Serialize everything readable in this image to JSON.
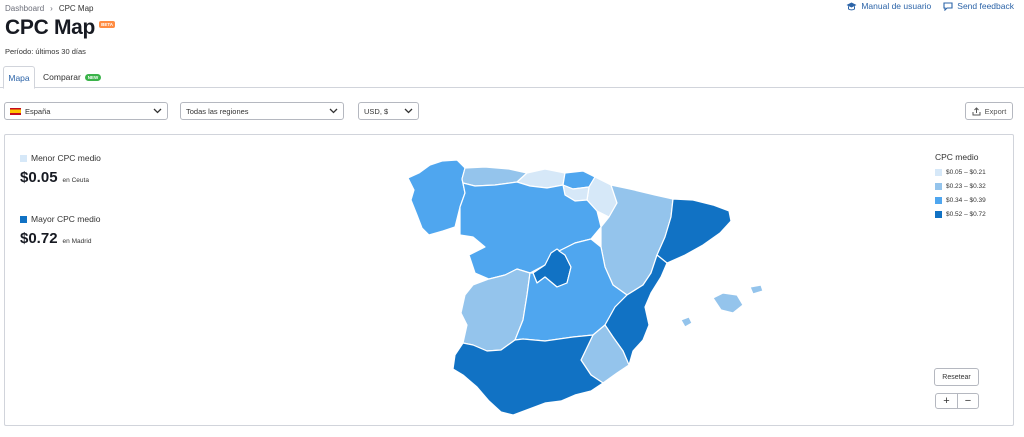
{
  "breadcrumb": {
    "root": "Dashboard",
    "separator": "›",
    "current": "CPC Map"
  },
  "top_links": {
    "manual": "Manual de usuario",
    "feedback": "Send feedback"
  },
  "header": {
    "title": "CPC Map",
    "badge": "BETA",
    "period": "Período: últimos 30 días"
  },
  "tabs": [
    {
      "label": "Mapa",
      "active": true
    },
    {
      "label": "Comparar",
      "badge": "NEW"
    }
  ],
  "filters": {
    "country": "España",
    "region": "Todas las regiones",
    "currency": "USD, $",
    "export": "Export"
  },
  "stats": {
    "min": {
      "label": "Menor CPC medio",
      "value": "$0.05",
      "place": "en Ceuta"
    },
    "max": {
      "label": "Mayor CPC medio",
      "value": "$0.72",
      "place": "en Madrid"
    }
  },
  "legend": {
    "title": "CPC medio",
    "items": [
      {
        "label": "$0.05 – $0.21",
        "color": "#d6e8f8"
      },
      {
        "label": "$0.23 – $0.32",
        "color": "#94c4ec"
      },
      {
        "label": "$0.34 – $0.39",
        "color": "#4fa6ef"
      },
      {
        "label": "$0.52 – $0.72",
        "color": "#1172c4"
      }
    ]
  },
  "controls": {
    "reset": "Resetear",
    "zoom_in": "+",
    "zoom_out": "−"
  },
  "colors": {
    "accent": "#2c64a8",
    "beta_badge": "#ff8c42",
    "new_badge": "#3bb34a"
  },
  "icons": [
    "chevron-right-icon",
    "graduation-cap-icon",
    "chat-icon",
    "chevron-down-icon",
    "export-icon"
  ]
}
